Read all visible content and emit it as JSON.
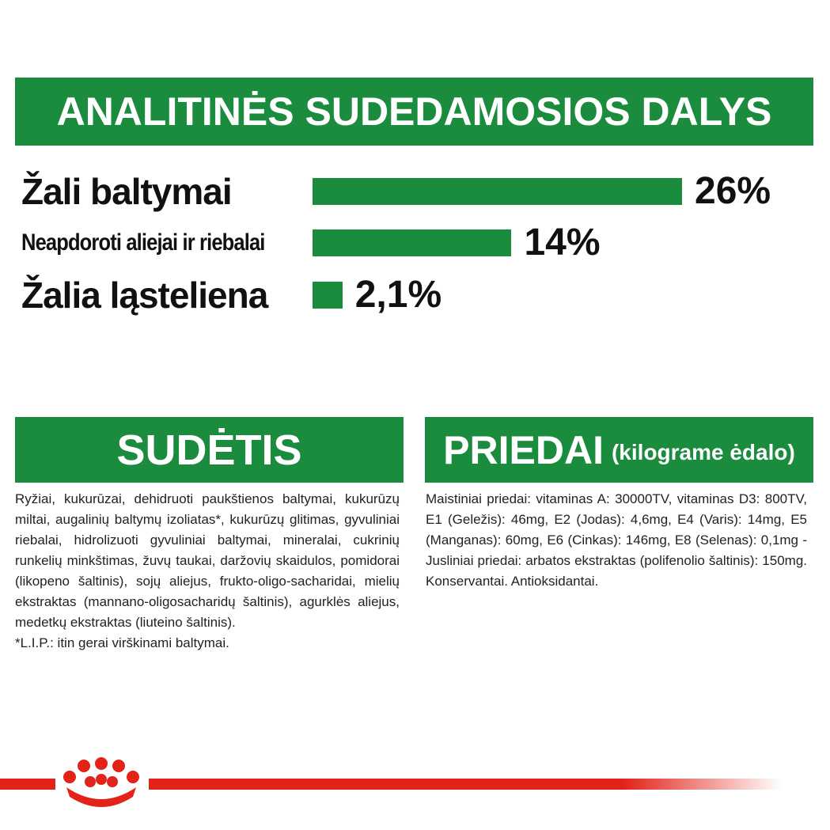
{
  "chart_data": {
    "type": "bar",
    "title": "ANALITINĖS SUDEDAMOSIOS DALYS",
    "categories": [
      "Žali baltymai",
      "Neapdoroti aliejai ir riebalai",
      "Žalia ląsteliena"
    ],
    "values": [
      26,
      14,
      2.1
    ],
    "value_labels": [
      "26%",
      "14%",
      "2,1%"
    ],
    "color": "#1b8c3e"
  },
  "composition": {
    "title": "SUDĖTIS",
    "text": "Ryžiai, kukurūzai, dehidruoti paukštienos baltymai, kukurūzų miltai, augalinių baltymų izoliatas*, kukurūzų glitimas, gyvuliniai riebalai, hidrolizuoti gyvuliniai baltymai, mineralai, cukrinių runkelių minkštimas, žuvų taukai, daržovių skaidulos, pomidorai (likopeno šaltinis), sojų aliejus, frukto-oligo-sacharidai, mielių ekstraktas (mannano-oligosacharidų šaltinis), agurklės aliejus, medetkų ekstraktas (liuteino šaltinis).",
    "note": "*L.I.P.: itin gerai virškinami baltymai."
  },
  "additives": {
    "title": "PRIEDAI",
    "subtitle": "(kilograme ėdalo)",
    "text": "Maistiniai priedai: vitaminas A: 30000TV, vitaminas D3: 800TV, E1 (Geležis): 46mg, E2 (Jodas): 4,6mg, E4 (Varis): 14mg, E5 (Manganas): 60mg, E6 (Cinkas): 146mg, E8 (Selenas): 0,1mg - Jusliniai priedai: arbatos ekstraktas (polifenolio šaltinis): 150mg. Konservantai. Antioksidantai."
  }
}
